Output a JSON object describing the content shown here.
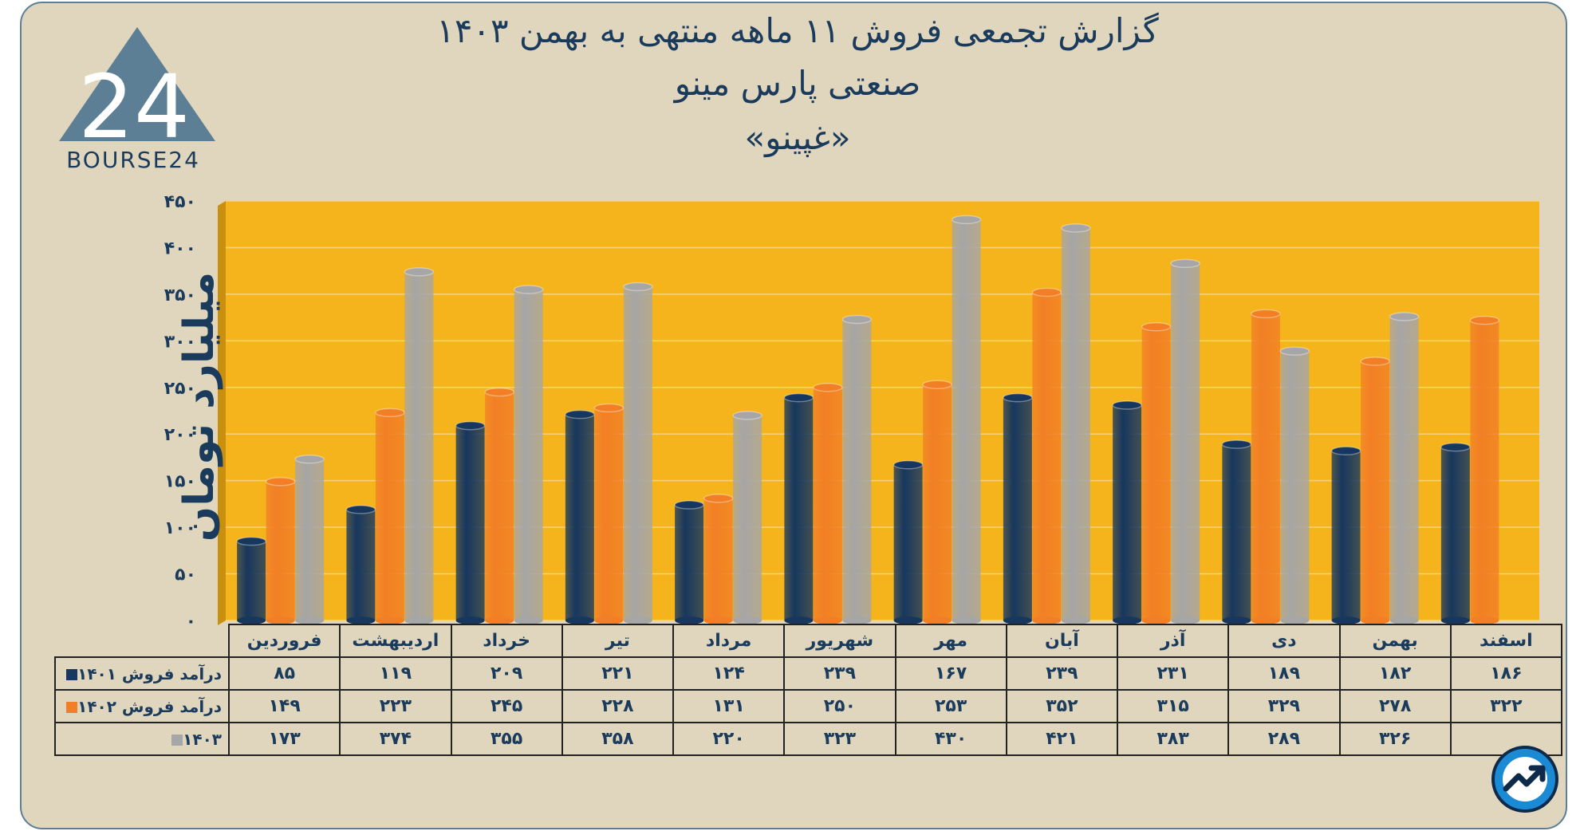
{
  "title_line1": "گزارش تجمعی فروش ۱۱ ماهه منتهی به بهمن ۱۴۰۳",
  "title_line2": "صنعتی پارس مینو",
  "title_line3": "«غپینو»",
  "logo": {
    "text": "BOURSE24",
    "mark": "24"
  },
  "colors": {
    "frame_bg": "#e0d6bd",
    "plot_bg": "#f5b41c",
    "series_1401": "#17375e",
    "series_1402": "#f27f25",
    "series_1403": "#a6a6a6",
    "text": "#1b3b5c"
  },
  "badge_icon": "trend-arrow-icon",
  "chart_data": {
    "type": "bar",
    "title": "گزارش تجمعی فروش ۱۱ ماهه منتهی به بهمن ۱۴۰۳",
    "ylabel": "میلیارد تومان",
    "ylim": [
      0,
      450
    ],
    "yticks": [
      0,
      50,
      100,
      150,
      200,
      250,
      300,
      350,
      400,
      450
    ],
    "ytick_labels": [
      "۰",
      "۵۰",
      "۱۰۰",
      "۱۵۰",
      "۲۰۰",
      "۲۵۰",
      "۳۰۰",
      "۳۵۰",
      "۴۰۰",
      "۴۵۰"
    ],
    "grid": true,
    "categories": [
      "فروردین",
      "اردیبهشت",
      "خرداد",
      "تیر",
      "مرداد",
      "شهریور",
      "مهر",
      "آبان",
      "آذر",
      "دی",
      "بهمن",
      "اسفند"
    ],
    "series": [
      {
        "name": "درآمد فروش ۱۴۰۱",
        "values": [
          85,
          119,
          209,
          221,
          124,
          239,
          167,
          239,
          231,
          189,
          182,
          186
        ],
        "labels": [
          "۸۵",
          "۱۱۹",
          "۲۰۹",
          "۲۲۱",
          "۱۲۴",
          "۲۳۹",
          "۱۶۷",
          "۲۳۹",
          "۲۳۱",
          "۱۸۹",
          "۱۸۲",
          "۱۸۶"
        ]
      },
      {
        "name": "درآمد فروش ۱۴۰۲",
        "values": [
          149,
          223,
          245,
          228,
          131,
          250,
          253,
          352,
          315,
          329,
          278,
          322
        ],
        "labels": [
          "۱۴۹",
          "۲۲۳",
          "۲۴۵",
          "۲۲۸",
          "۱۳۱",
          "۲۵۰",
          "۲۵۳",
          "۳۵۲",
          "۳۱۵",
          "۳۲۹",
          "۲۷۸",
          "۳۲۲"
        ]
      },
      {
        "name": "۱۴۰۳",
        "values": [
          173,
          374,
          355,
          358,
          220,
          323,
          430,
          421,
          383,
          289,
          326,
          null
        ],
        "labels": [
          "۱۷۳",
          "۳۷۴",
          "۳۵۵",
          "۳۵۸",
          "۲۲۰",
          "۳۲۳",
          "۴۳۰",
          "۴۲۱",
          "۳۸۳",
          "۲۸۹",
          "۳۲۶",
          ""
        ]
      }
    ]
  }
}
